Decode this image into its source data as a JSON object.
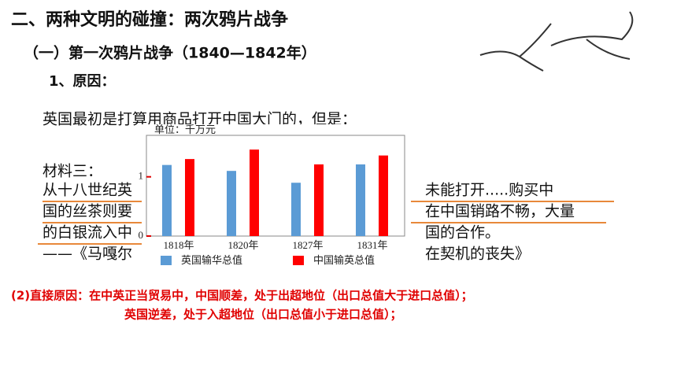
{
  "header": {
    "title": "二、两种文明的碰撞：两次鸦片战争",
    "subtitle": "（一）第一次鸦片战争（1840—1842年）",
    "section": "1、原因："
  },
  "body": {
    "intro": "英国最初是打算用商品打开中国大门的，但是：",
    "material": "材料三：",
    "lines_left": [
      "从十八世纪英",
      "国的丝茶则要",
      "的白银流入中",
      "——《马嘎尔"
    ],
    "lines_right": [
      "未能打开.....购买中",
      "在中国销路不畅，大量",
      "国的合作。",
      "在契机的丧失》"
    ]
  },
  "chart_data": {
    "type": "bar",
    "unit": "单位：千万元",
    "categories": [
      "1818年",
      "1820年",
      "1827年",
      "1831年"
    ],
    "series": [
      {
        "name": "英国输华总值",
        "color": "#5b9bd5",
        "values": [
          1.2,
          1.1,
          0.9,
          1.21
        ]
      },
      {
        "name": "中国输英总值",
        "color": "#ff0000",
        "values": [
          1.3,
          1.46,
          1.21,
          1.36
        ]
      }
    ],
    "ylim": [
      0,
      1.7
    ],
    "yticks": [
      0,
      1
    ]
  },
  "conclusion": {
    "line1": "(2)直接原因：在中英正当贸易中，中国顺差，处于出超地位（出口总值大于进口总值）；",
    "line2": "英国逆差，处于入超地位（出口总值小于进口总值）；"
  }
}
